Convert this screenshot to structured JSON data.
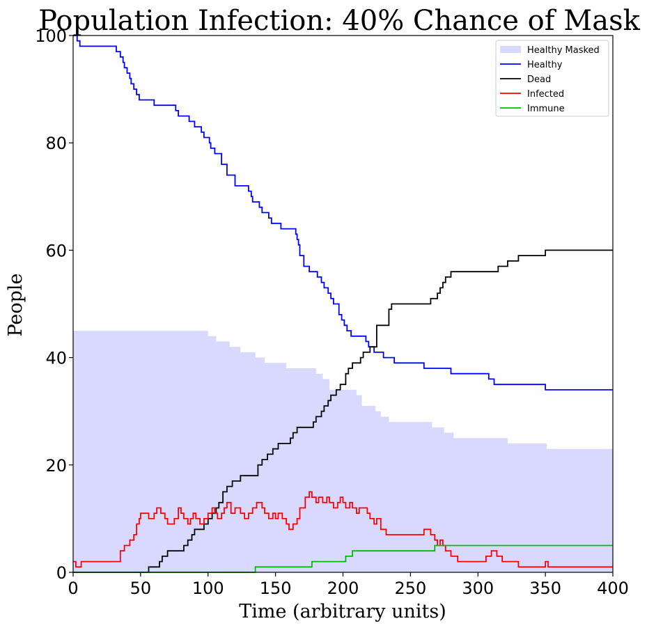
{
  "chart_data": {
    "type": "line",
    "title": "Population Infection: 40% Chance of Mask",
    "xlabel": "Time (arbitrary units)",
    "ylabel": "People",
    "xlim": [
      0,
      400
    ],
    "ylim": [
      0,
      100
    ],
    "xticks": [
      0,
      50,
      100,
      150,
      200,
      250,
      300,
      350,
      400
    ],
    "yticks": [
      0,
      20,
      40,
      60,
      80,
      100
    ],
    "xtick_labels": [
      "0",
      "50",
      "100",
      "150",
      "200",
      "250",
      "300",
      "350",
      "400"
    ],
    "ytick_labels": [
      "0",
      "20",
      "40",
      "60",
      "80",
      "100"
    ],
    "grid": false,
    "legend_position": "top-right",
    "series": [
      {
        "name": "Healthy Masked",
        "kind": "area",
        "color": "#d9d9ff",
        "x": [
          0,
          70,
          100,
          106,
          116,
          124,
          135,
          142,
          158,
          180,
          185,
          190,
          210,
          214,
          224,
          228,
          234,
          254,
          266,
          275,
          282,
          322,
          351,
          400
        ],
        "y": [
          45,
          45,
          44,
          43,
          42,
          41,
          40,
          39,
          38,
          37,
          36,
          34,
          33,
          31,
          30,
          29,
          28,
          28,
          27,
          26,
          25,
          24,
          23,
          23
        ]
      },
      {
        "name": "Healthy",
        "kind": "line",
        "color": "#0000ff",
        "x": [
          0,
          3,
          5,
          31,
          32,
          35,
          37,
          38,
          40,
          42,
          43,
          45,
          47,
          49,
          55,
          60,
          75,
          76,
          78,
          86,
          90,
          95,
          97,
          101,
          102,
          105,
          110,
          114,
          117,
          120,
          125,
          130,
          132,
          133,
          138,
          140,
          145,
          147,
          154,
          157,
          160,
          165,
          166,
          167,
          168,
          171,
          175,
          180,
          181,
          184,
          186,
          189,
          191,
          193,
          197,
          199,
          201,
          203,
          206,
          213,
          217,
          219,
          223,
          230,
          238,
          250,
          260,
          267,
          280,
          290,
          300,
          308,
          312,
          320,
          330,
          348,
          350,
          400
        ],
        "y": [
          100,
          99,
          98,
          98,
          97,
          96,
          95,
          94,
          93,
          92,
          91,
          90,
          89,
          88,
          88,
          87,
          87,
          86,
          85,
          84,
          83,
          82,
          81,
          80,
          79,
          78,
          76,
          74,
          74,
          72,
          72,
          71,
          70,
          69,
          68,
          67,
          66,
          65,
          64,
          64,
          64,
          63,
          62,
          61,
          59,
          57,
          56,
          56,
          55,
          54,
          53,
          52,
          51,
          50,
          48,
          47,
          46,
          45,
          44,
          44,
          43,
          42,
          41,
          40,
          39,
          39,
          38,
          38,
          37,
          37,
          37,
          36,
          35,
          35,
          35,
          35,
          34,
          34
        ]
      },
      {
        "name": "Dead",
        "kind": "line",
        "color": "#000000",
        "x": [
          0,
          55,
          56,
          60,
          64,
          66,
          70,
          76,
          82,
          85,
          88,
          90,
          93,
          97,
          100,
          103,
          106,
          108,
          111,
          114,
          118,
          124,
          128,
          137,
          140,
          144,
          148,
          152,
          156,
          161,
          163,
          166,
          178,
          180,
          184,
          186,
          189,
          191,
          195,
          198,
          202,
          204,
          207,
          213,
          215,
          220,
          225,
          234,
          236,
          238,
          240,
          265,
          270,
          272,
          274,
          276,
          280,
          286,
          290,
          300,
          315,
          322,
          330,
          348,
          350,
          400
        ],
        "y": [
          0,
          0,
          1,
          1,
          2,
          3,
          4,
          4,
          5,
          6,
          7,
          8,
          8,
          9,
          10,
          11,
          12,
          13,
          15,
          16,
          17,
          18,
          18,
          20,
          21,
          22,
          23,
          24,
          24,
          25,
          26,
          27,
          28,
          29,
          30,
          31,
          32,
          33,
          34,
          35,
          37,
          38,
          39,
          40,
          41,
          42,
          46,
          49,
          50,
          50,
          50,
          51,
          52,
          53,
          54,
          55,
          56,
          56,
          56,
          56,
          57,
          58,
          59,
          59,
          60,
          60
        ]
      },
      {
        "name": "Infected",
        "kind": "line",
        "color": "#ff0000",
        "x": [
          0,
          2,
          6,
          32,
          35,
          38,
          42,
          45,
          47,
          49,
          50,
          55,
          56,
          60,
          62,
          65,
          68,
          70,
          72,
          75,
          78,
          80,
          82,
          85,
          87,
          89,
          91,
          94,
          97,
          100,
          103,
          105,
          107,
          110,
          112,
          114,
          117,
          120,
          124,
          127,
          130,
          133,
          136,
          140,
          142,
          145,
          148,
          150,
          152,
          155,
          158,
          160,
          163,
          166,
          168,
          172,
          175,
          177,
          180,
          182,
          185,
          188,
          190,
          193,
          196,
          198,
          200,
          202,
          205,
          207,
          210,
          212,
          218,
          220,
          223,
          225,
          228,
          232,
          235,
          250,
          260,
          262,
          265,
          268,
          270,
          272,
          274,
          276,
          280,
          285,
          290,
          300,
          306,
          310,
          314,
          318,
          322,
          330,
          340,
          348,
          350,
          352,
          360,
          400
        ],
        "y": [
          2,
          1,
          2,
          2,
          4,
          5,
          6,
          7,
          9,
          10,
          11,
          11,
          10,
          11,
          12,
          11,
          10,
          9,
          9,
          10,
          12,
          11,
          10,
          9,
          10,
          11,
          10,
          9,
          10,
          11,
          12,
          11,
          10,
          11,
          12,
          13,
          11,
          12,
          11,
          10,
          11,
          12,
          13,
          12,
          11,
          10,
          11,
          10,
          11,
          10,
          9,
          8,
          9,
          10,
          12,
          14,
          15,
          14,
          13,
          14,
          13,
          14,
          13,
          12,
          13,
          14,
          13,
          12,
          13,
          12,
          11,
          12,
          11,
          10,
          9,
          10,
          8,
          7,
          7,
          7,
          8,
          8,
          7,
          6,
          5,
          6,
          5,
          4,
          3,
          2,
          2,
          2,
          3,
          4,
          3,
          2,
          2,
          1,
          1,
          1,
          2,
          1,
          1,
          1
        ]
      },
      {
        "name": "Immune",
        "kind": "line",
        "color": "#00bb00",
        "x": [
          0,
          134,
          135,
          170,
          177,
          195,
          202,
          207,
          215,
          240,
          265,
          268,
          270,
          300,
          400
        ],
        "y": [
          0,
          0,
          1,
          1,
          2,
          2,
          3,
          4,
          4,
          4,
          4,
          5,
          5,
          5,
          5
        ]
      }
    ]
  }
}
